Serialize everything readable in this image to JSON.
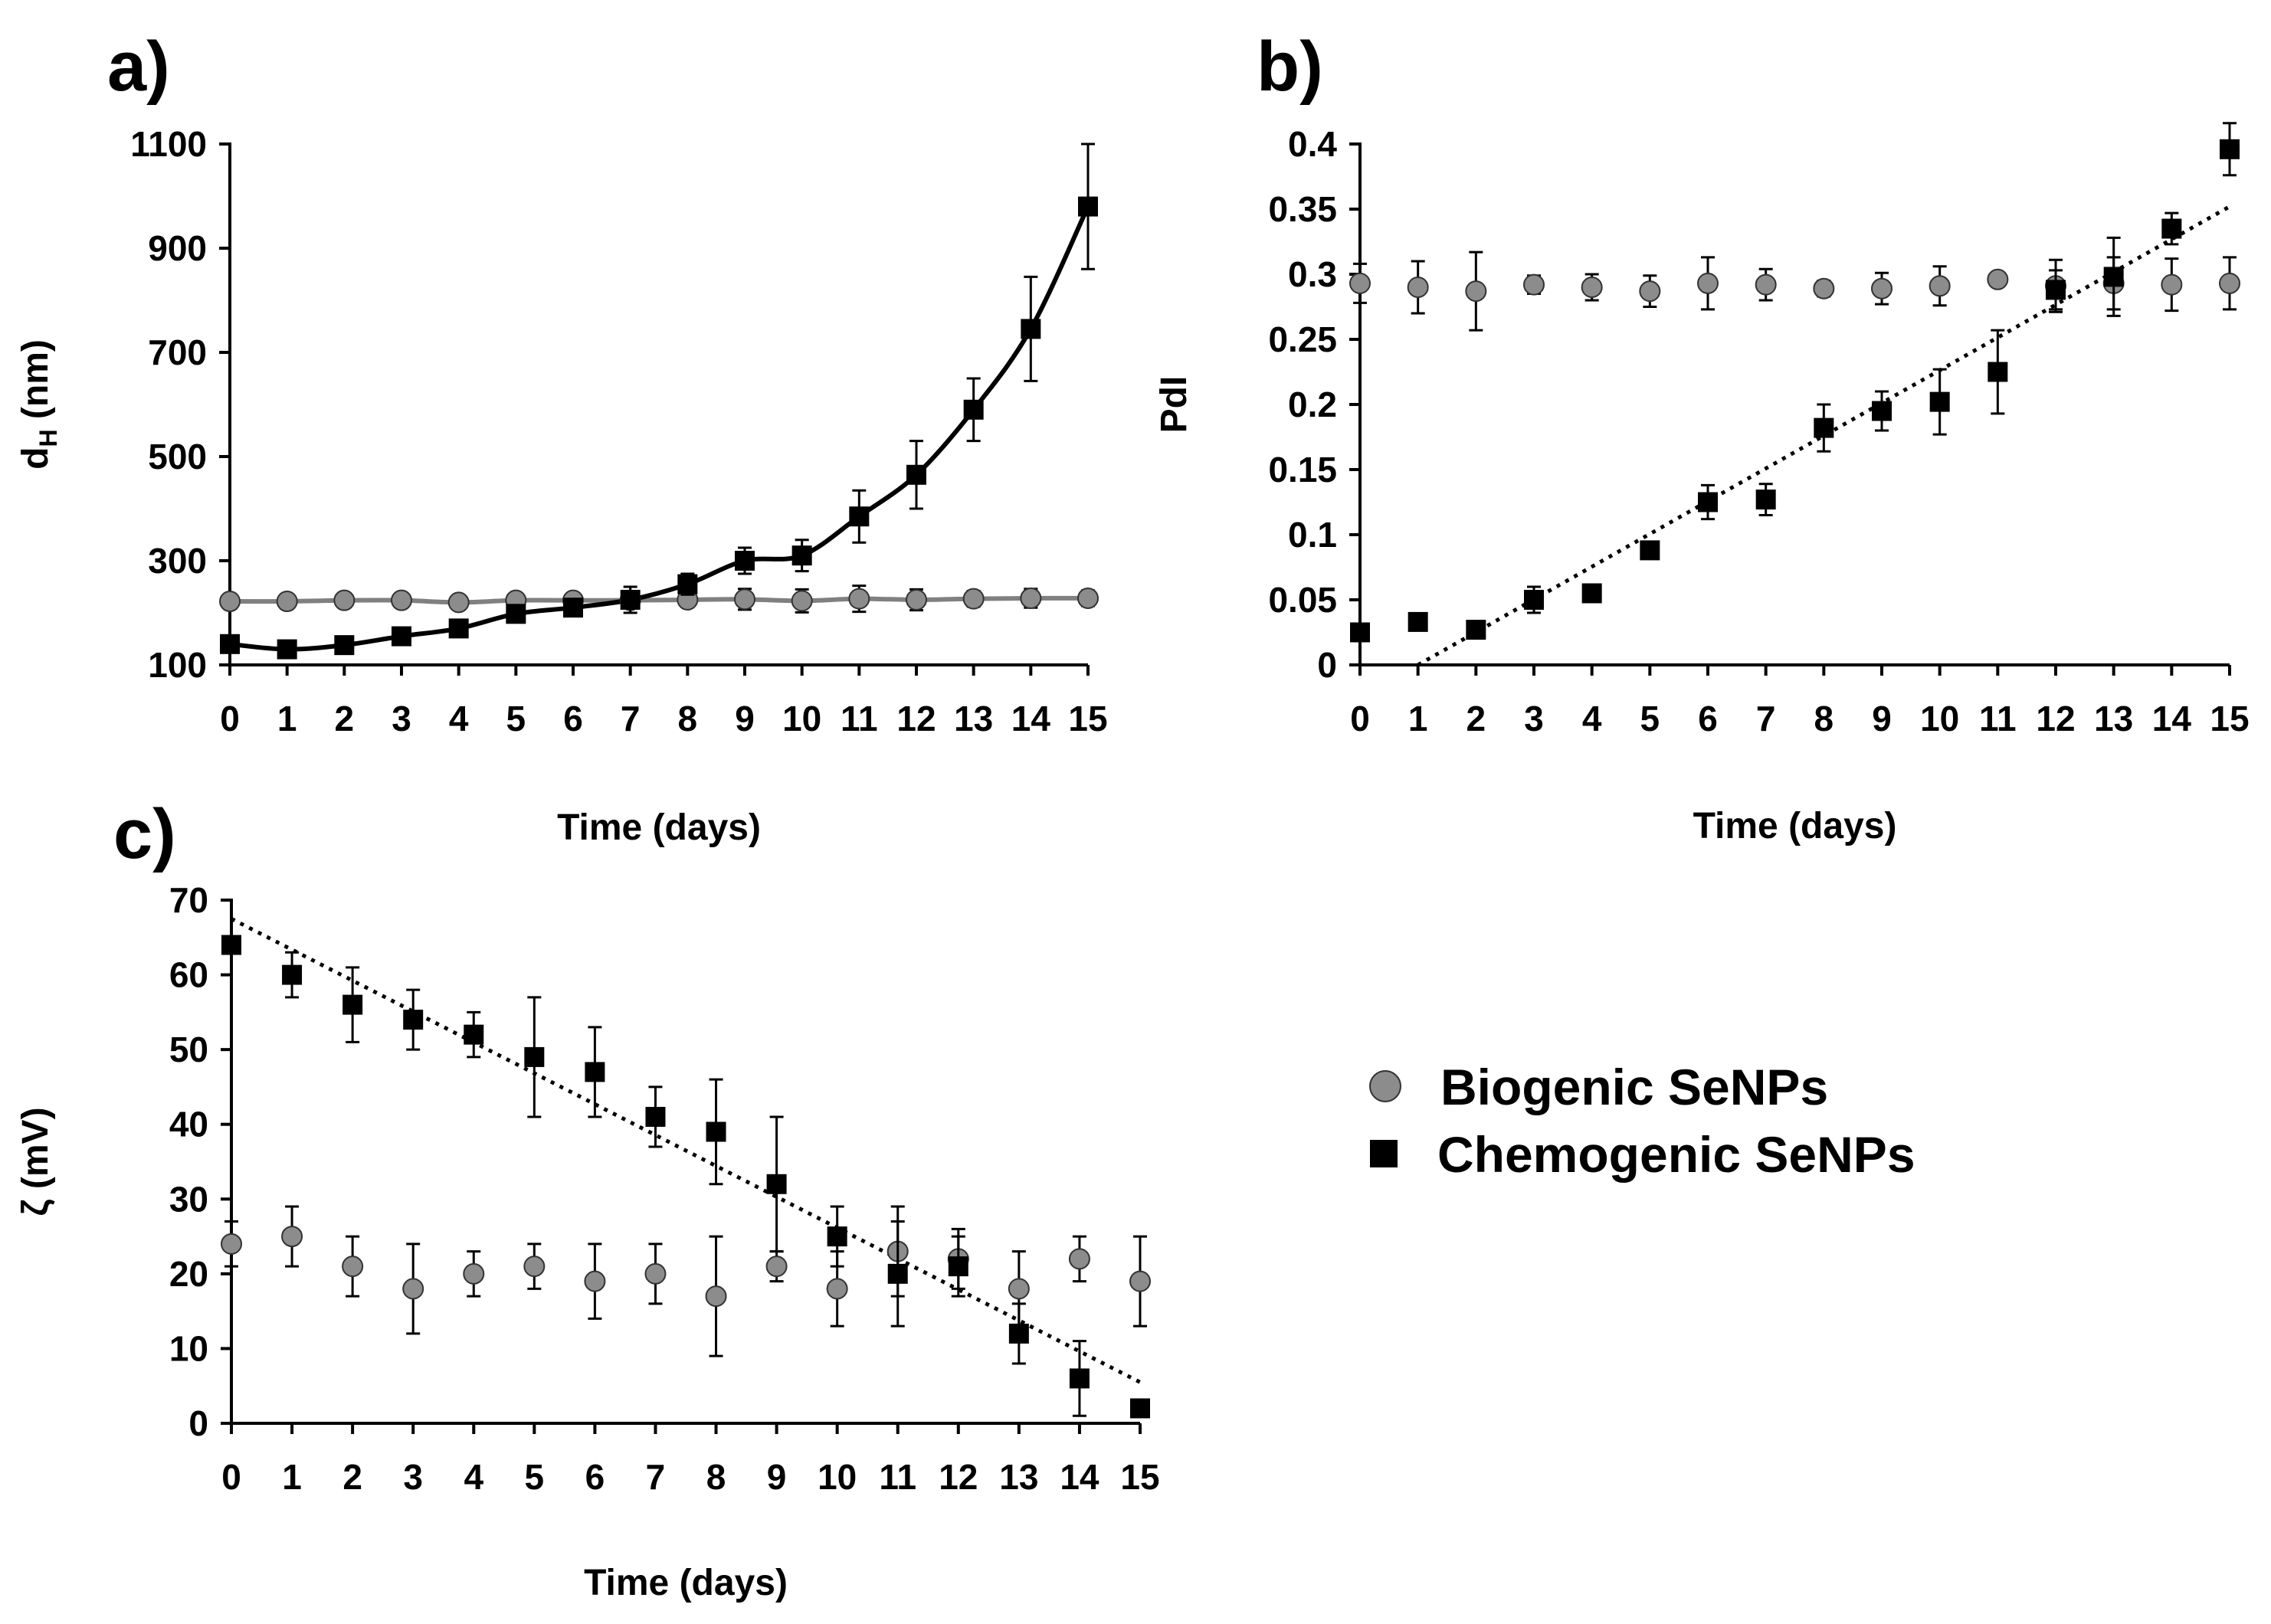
{
  "chart_data": [
    {
      "id": "a",
      "panel_label": "a)",
      "type": "line",
      "xlabel": "Time (days)",
      "ylabel": "d",
      "ylabel_sub": "H",
      "ylabel_unit": " (nm)",
      "xlim": [
        0,
        15
      ],
      "ylim": [
        100,
        1100
      ],
      "xticks": [
        "0",
        "1",
        "2",
        "3",
        "4",
        "5",
        "6",
        "7",
        "8",
        "9",
        "10",
        "11",
        "12",
        "13",
        "14",
        "15"
      ],
      "yticks": [
        100,
        300,
        500,
        700,
        900,
        1100
      ],
      "x": [
        0,
        1,
        2,
        3,
        4,
        5,
        6,
        7,
        8,
        9,
        10,
        11,
        12,
        13,
        14,
        15
      ],
      "series": [
        {
          "name": "Biogenic SeNPs",
          "marker": "circle",
          "line": "smooth",
          "values": [
            222,
            222,
            224,
            224,
            220,
            224,
            224,
            224,
            225,
            226,
            223,
            227,
            225,
            227,
            228,
            228
          ],
          "errors": [
            8,
            6,
            7,
            7,
            12,
            10,
            12,
            10,
            12,
            20,
            22,
            25,
            20,
            15,
            18,
            15
          ]
        },
        {
          "name": "Chemogenic SeNPs",
          "marker": "square",
          "line": "smooth",
          "values": [
            140,
            130,
            138,
            155,
            170,
            198,
            210,
            225,
            255,
            300,
            310,
            385,
            465,
            590,
            745,
            980
          ],
          "errors": [
            5,
            5,
            5,
            8,
            8,
            10,
            15,
            25,
            20,
            25,
            30,
            50,
            65,
            60,
            100,
            120
          ]
        }
      ]
    },
    {
      "id": "b",
      "panel_label": "b)",
      "type": "scatter",
      "xlabel": "Time (days)",
      "ylabel": "PdI",
      "xlim": [
        0,
        15
      ],
      "ylim": [
        0,
        0.4
      ],
      "xticks": [
        "0",
        "1",
        "2",
        "3",
        "4",
        "5",
        "6",
        "7",
        "8",
        "9",
        "10",
        "11",
        "12",
        "13",
        "14",
        "15"
      ],
      "yticks": [
        "0",
        "0.05",
        "0.1",
        "0.15",
        "0.2",
        "0.25",
        "0.3",
        "0.35",
        "0.4"
      ],
      "x": [
        0,
        1,
        2,
        3,
        4,
        5,
        6,
        7,
        8,
        9,
        10,
        11,
        12,
        13,
        14,
        15
      ],
      "series": [
        {
          "name": "Biogenic SeNPs",
          "marker": "circle",
          "values": [
            0.293,
            0.29,
            0.287,
            0.292,
            0.29,
            0.287,
            0.293,
            0.292,
            0.289,
            0.289,
            0.291,
            0.296,
            0.291,
            0.293,
            0.292,
            0.293
          ],
          "errors": [
            0.015,
            0.02,
            0.03,
            0.007,
            0.01,
            0.012,
            0.02,
            0.012,
            0.006,
            0.012,
            0.015,
            0.004,
            0.02,
            0.02,
            0.02,
            0.02
          ]
        },
        {
          "name": "Chemogenic SeNPs",
          "marker": "square",
          "values": [
            0.025,
            0.033,
            0.027,
            0.05,
            0.055,
            0.088,
            0.125,
            0.127,
            0.182,
            0.195,
            0.202,
            0.225,
            0.288,
            0.298,
            0.335,
            0.396
          ],
          "errors": [
            0.003,
            0.003,
            0.003,
            0.01,
            0.003,
            0.003,
            0.013,
            0.012,
            0.018,
            0.015,
            0.025,
            0.032,
            0.015,
            0.03,
            0.012,
            0.02
          ]
        }
      ],
      "trendline": {
        "series": "Chemogenic SeNPs",
        "x": [
          1,
          15
        ],
        "y": [
          0,
          0.352
        ]
      }
    },
    {
      "id": "c",
      "panel_label": "c)",
      "type": "scatter",
      "xlabel": "Time (days)",
      "ylabel": "ζ (mV)",
      "xlim": [
        0,
        15
      ],
      "ylim": [
        0,
        70
      ],
      "xticks": [
        "0",
        "1",
        "2",
        "3",
        "4",
        "5",
        "6",
        "7",
        "8",
        "9",
        "10",
        "11",
        "12",
        "13",
        "14",
        "15"
      ],
      "yticks": [
        0,
        10,
        20,
        30,
        40,
        50,
        60,
        70
      ],
      "x": [
        0,
        1,
        2,
        3,
        4,
        5,
        6,
        7,
        8,
        9,
        10,
        11,
        12,
        13,
        14,
        15
      ],
      "series": [
        {
          "name": "Biogenic SeNPs",
          "marker": "circle",
          "values": [
            24,
            25,
            21,
            18,
            20,
            21,
            19,
            20,
            17,
            21,
            18,
            23,
            22,
            18,
            22,
            19
          ],
          "errors": [
            3,
            4,
            4,
            6,
            3,
            3,
            5,
            4,
            8,
            2,
            5,
            6,
            4,
            5,
            3,
            6
          ]
        },
        {
          "name": "Chemogenic SeNPs",
          "marker": "square",
          "values": [
            64,
            60,
            56,
            54,
            52,
            49,
            47,
            41,
            39,
            32,
            25,
            20,
            21,
            12,
            6,
            2
          ],
          "errors": [
            1,
            3,
            5,
            4,
            3,
            8,
            6,
            4,
            7,
            9,
            4,
            7,
            4,
            4,
            5,
            1
          ]
        }
      ],
      "trendline": {
        "series": "Chemogenic SeNPs",
        "x": [
          0,
          15
        ],
        "y": [
          67.5,
          5.5
        ]
      }
    }
  ],
  "legend": {
    "position": "right of panel c",
    "entries": [
      {
        "label": "Biogenic SeNPs",
        "marker": "circle",
        "color": "#8c8c8c"
      },
      {
        "label": "Chemogenic SeNPs",
        "marker": "square",
        "color": "#000000"
      }
    ]
  },
  "colors": {
    "biogenic": "#8c8c8c",
    "biogenic_line": "#808080",
    "chemogenic": "#000000"
  }
}
